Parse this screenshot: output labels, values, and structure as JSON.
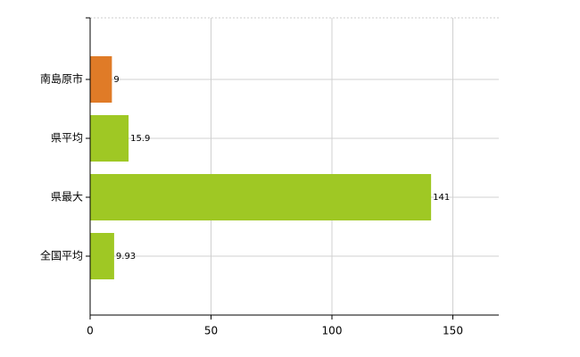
{
  "chart_data": {
    "type": "hbar",
    "categories": [
      "南島原市",
      "県平均",
      "県最大",
      "全国平均"
    ],
    "values": [
      9,
      15.9,
      141,
      9.93
    ],
    "colors": [
      "#e07b27",
      "#9fc824",
      "#9fc824",
      "#9fc824"
    ],
    "xlim": [
      0,
      169
    ],
    "xticks": [
      0,
      50,
      100,
      150
    ],
    "grid": true
  }
}
